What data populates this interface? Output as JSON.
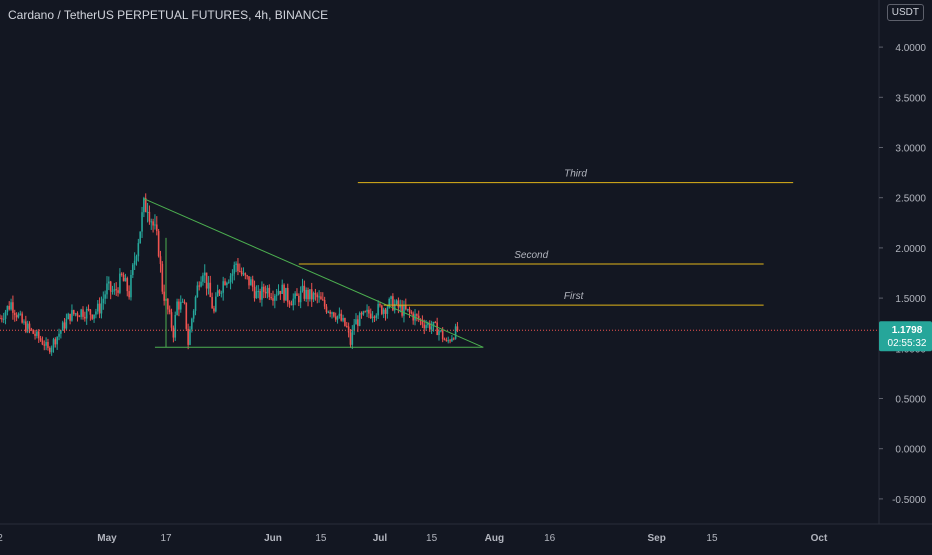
{
  "header": {
    "title": "Cardano / TetherUS PERPETUAL FUTURES, 4h, BINANCE",
    "currency": "USDT"
  },
  "price_label": {
    "price": "1.1798",
    "countdown": "02:55:32"
  },
  "chart_data": {
    "type": "candlestick",
    "title": "Cardano / TetherUS PERPETUAL FUTURES, 4h, BINANCE",
    "xlabel": "",
    "ylabel": "",
    "ylim": [
      -0.75,
      4.25
    ],
    "y_ticks": [
      "4.0000",
      "3.5000",
      "3.0000",
      "2.5000",
      "2.0000",
      "1.5000",
      "1.0000",
      "0.5000",
      "0.0000",
      "-0.5000"
    ],
    "y_tick_values": [
      4.0,
      3.5,
      3.0,
      2.5,
      2.0,
      1.5,
      1.0,
      0.5,
      0.0,
      -0.5
    ],
    "x_ticks": [
      "2",
      "May",
      "17",
      "Jun",
      "15",
      "Jul",
      "15",
      "Aug",
      "16",
      "Sep",
      "15",
      "Oct"
    ],
    "x_tick_days": [
      0,
      29,
      45,
      74,
      87,
      103,
      117,
      134,
      149,
      178,
      193,
      222
    ],
    "x_range_days": [
      0,
      238
    ],
    "day_zero": "Apr 2",
    "last_price": 1.1798,
    "price_path": [
      [
        0,
        1.3
      ],
      [
        3,
        1.45
      ],
      [
        6,
        1.25
      ],
      [
        9,
        1.15
      ],
      [
        12,
        1.05
      ],
      [
        13,
        0.98
      ],
      [
        16,
        1.15
      ],
      [
        19,
        1.33
      ],
      [
        22,
        1.37
      ],
      [
        25,
        1.35
      ],
      [
        27,
        1.4
      ],
      [
        29,
        1.6
      ],
      [
        31,
        1.55
      ],
      [
        33,
        1.7
      ],
      [
        35,
        1.55
      ],
      [
        37,
        2.0
      ],
      [
        39,
        2.4
      ],
      [
        40,
        2.45
      ],
      [
        41,
        2.3
      ],
      [
        43,
        2.0
      ],
      [
        44,
        1.6
      ],
      [
        45,
        1.45
      ],
      [
        46,
        1.3
      ],
      [
        47,
        1.15
      ],
      [
        48,
        1.45
      ],
      [
        50,
        1.4
      ],
      [
        51,
        1.05
      ],
      [
        52,
        1.3
      ],
      [
        54,
        1.7
      ],
      [
        55,
        1.8
      ],
      [
        57,
        1.5
      ],
      [
        58,
        1.35
      ],
      [
        59,
        1.55
      ],
      [
        61,
        1.7
      ],
      [
        63,
        1.75
      ],
      [
        64,
        1.85
      ],
      [
        66,
        1.7
      ],
      [
        68,
        1.65
      ],
      [
        70,
        1.5
      ],
      [
        72,
        1.6
      ],
      [
        74,
        1.55
      ],
      [
        76,
        1.6
      ],
      [
        78,
        1.5
      ],
      [
        80,
        1.48
      ],
      [
        82,
        1.55
      ],
      [
        84,
        1.52
      ],
      [
        86,
        1.5
      ],
      [
        88,
        1.42
      ],
      [
        90,
        1.38
      ],
      [
        92,
        1.3
      ],
      [
        94,
        1.2
      ],
      [
        95,
        1.05
      ],
      [
        96,
        1.25
      ],
      [
        98,
        1.3
      ],
      [
        100,
        1.35
      ],
      [
        102,
        1.38
      ],
      [
        104,
        1.4
      ],
      [
        106,
        1.45
      ],
      [
        107,
        1.43
      ],
      [
        109,
        1.38
      ],
      [
        111,
        1.35
      ],
      [
        113,
        1.3
      ],
      [
        115,
        1.25
      ],
      [
        117,
        1.22
      ],
      [
        119,
        1.18
      ],
      [
        121,
        1.05
      ],
      [
        122,
        1.1
      ],
      [
        123,
        1.15
      ],
      [
        124,
        1.18
      ]
    ],
    "hlines": [
      {
        "label": "First",
        "y": 1.43,
        "x_start": 104,
        "x_end": 207
      },
      {
        "label": "Second",
        "y": 1.84,
        "x_start": 81,
        "x_end": 207
      },
      {
        "label": "Third",
        "y": 2.65,
        "x_start": 97,
        "x_end": 215
      }
    ],
    "trendlines": [
      {
        "from": [
          39,
          2.49
        ],
        "to": [
          131,
          1.01
        ]
      },
      {
        "from": [
          42,
          1.01
        ],
        "to": [
          131,
          1.01
        ]
      },
      {
        "from": [
          45,
          1.01
        ],
        "to": [
          45,
          2.1
        ]
      }
    ],
    "colors": {
      "background": "#131722",
      "up": "#26a69a",
      "down": "#ef5350",
      "hline": "#e0b41a",
      "trendline": "#4caf50",
      "text": "#b2b5be",
      "grid": "#1f2430",
      "price_label": "#26a69a"
    },
    "grid": false
  }
}
